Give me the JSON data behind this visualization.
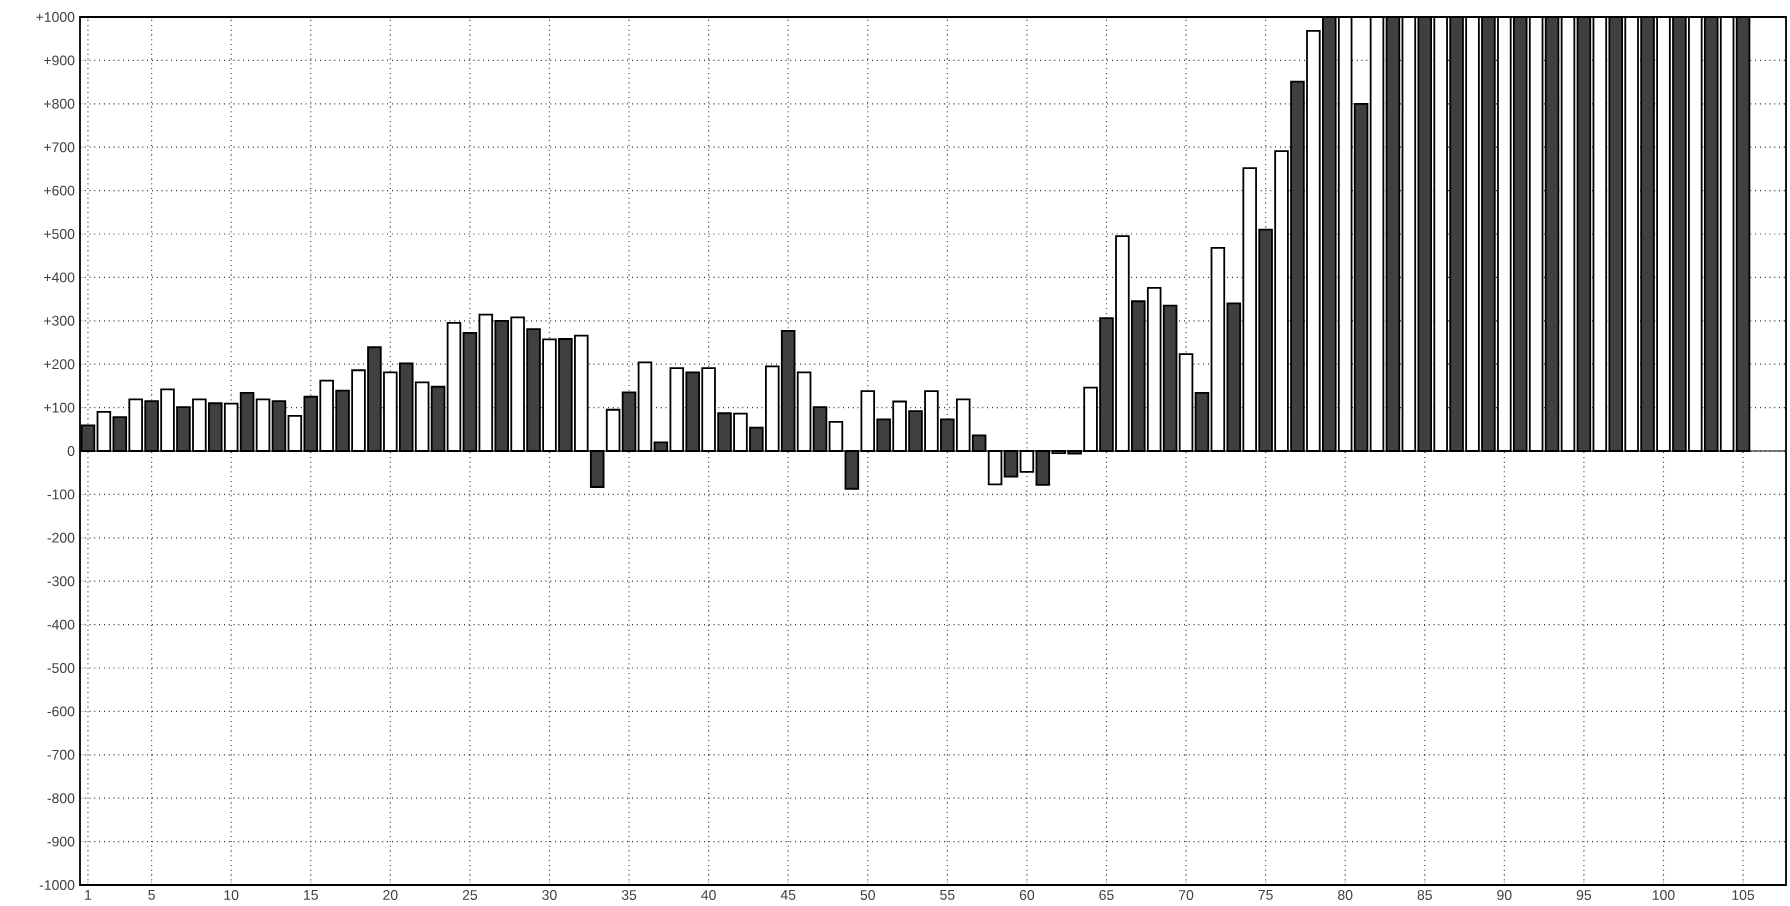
{
  "chart_data": {
    "type": "bar",
    "x": [
      1,
      2,
      3,
      4,
      5,
      6,
      7,
      8,
      9,
      10,
      11,
      12,
      13,
      14,
      15,
      16,
      17,
      18,
      19,
      20,
      21,
      22,
      23,
      24,
      25,
      26,
      27,
      28,
      29,
      30,
      31,
      32,
      33,
      34,
      35,
      36,
      37,
      38,
      39,
      40,
      41,
      42,
      43,
      44,
      45,
      46,
      47,
      48,
      49,
      50,
      51,
      52,
      53,
      54,
      55,
      56,
      57,
      58,
      59,
      60,
      61,
      62,
      63,
      64,
      65,
      66,
      67,
      68,
      69,
      70,
      71,
      72,
      73,
      74,
      75,
      76,
      77,
      78,
      79,
      80,
      81,
      82,
      83,
      84,
      85,
      86,
      87,
      88,
      89,
      90,
      91,
      92,
      93,
      94,
      95,
      96,
      97,
      98,
      99,
      100,
      101,
      102,
      103,
      104,
      105
    ],
    "values": [
      59,
      90,
      78,
      119,
      115,
      142,
      101,
      119,
      110,
      109,
      134,
      119,
      115,
      81,
      125,
      162,
      139,
      186,
      239,
      181,
      202,
      158,
      148,
      295,
      272,
      314,
      300,
      308,
      281,
      257,
      258,
      266,
      -83,
      95,
      135,
      204,
      20,
      191,
      181,
      191,
      87,
      86,
      54,
      195,
      277,
      181,
      101,
      67,
      -87,
      138,
      73,
      114,
      92,
      138,
      73,
      119,
      36,
      -77,
      -59,
      -48,
      -78,
      -5,
      -6,
      146,
      306,
      495,
      345,
      376,
      335,
      223,
      134,
      468,
      340,
      652,
      510,
      691,
      851,
      968,
      1000,
      1000,
      800,
      1000,
      1000,
      1000,
      1000,
      1000,
      1000,
      1000,
      1000,
      1000,
      1000,
      1000,
      1000,
      1000,
      1000,
      1000,
      1000,
      1000,
      1000,
      1000,
      1000,
      1000,
      1000,
      1000,
      1000
    ],
    "colors": [
      "#404040",
      "#ffffff",
      "#404040",
      "#ffffff",
      "#404040",
      "#ffffff",
      "#404040",
      "#ffffff",
      "#404040",
      "#ffffff",
      "#404040",
      "#ffffff",
      "#404040",
      "#ffffff",
      "#404040",
      "#ffffff",
      "#404040",
      "#ffffff",
      "#404040",
      "#ffffff",
      "#404040",
      "#ffffff",
      "#404040",
      "#ffffff",
      "#404040",
      "#ffffff",
      "#404040",
      "#ffffff",
      "#404040",
      "#ffffff",
      "#404040",
      "#ffffff",
      "#404040",
      "#ffffff",
      "#404040",
      "#ffffff",
      "#404040",
      "#ffffff",
      "#404040",
      "#ffffff",
      "#404040",
      "#ffffff",
      "#404040",
      "#ffffff",
      "#404040",
      "#ffffff",
      "#404040",
      "#ffffff",
      "#404040",
      "#ffffff",
      "#404040",
      "#ffffff",
      "#404040",
      "#ffffff",
      "#404040",
      "#ffffff",
      "#404040",
      "#ffffff",
      "#404040",
      "#ffffff",
      "#404040",
      "#ffffff",
      "#404040",
      "#ffffff",
      "#404040",
      "#ffffff",
      "#404040",
      "#ffffff",
      "#404040",
      "#ffffff",
      "#404040",
      "#ffffff",
      "#404040",
      "#ffffff",
      "#404040",
      "#ffffff",
      "#404040",
      "#ffffff",
      "#404040",
      "#ffffff",
      "#404040",
      "#ffffff",
      "#404040",
      "#ffffff",
      "#404040",
      "#ffffff",
      "#404040",
      "#ffffff",
      "#404040",
      "#ffffff",
      "#404040",
      "#ffffff",
      "#404040",
      "#ffffff",
      "#404040",
      "#ffffff",
      "#404040",
      "#ffffff",
      "#404040",
      "#ffffff",
      "#404040",
      "#ffffff",
      "#404040",
      "#ffffff",
      "#404040"
    ],
    "xlim": [
      0.5,
      107.7
    ],
    "ylim": [
      -1000,
      1000
    ],
    "xticks": [
      1,
      5,
      10,
      15,
      20,
      25,
      30,
      35,
      40,
      45,
      50,
      55,
      60,
      65,
      70,
      75,
      80,
      85,
      90,
      95,
      100,
      105
    ],
    "yticks": [
      {
        "value": -1000,
        "label": "-1000"
      },
      {
        "value": -900,
        "label": "-900"
      },
      {
        "value": -800,
        "label": "-800"
      },
      {
        "value": -700,
        "label": "-700"
      },
      {
        "value": -600,
        "label": "-600"
      },
      {
        "value": -500,
        "label": "-500"
      },
      {
        "value": -400,
        "label": "-400"
      },
      {
        "value": -300,
        "label": "-300"
      },
      {
        "value": -200,
        "label": "-200"
      },
      {
        "value": -100,
        "label": "-100"
      },
      {
        "value": 0,
        "label": "0"
      },
      {
        "value": 100,
        "label": "+100"
      },
      {
        "value": 200,
        "label": "+200"
      },
      {
        "value": 300,
        "label": "+300"
      },
      {
        "value": 400,
        "label": "+400"
      },
      {
        "value": 500,
        "label": "+500"
      },
      {
        "value": 600,
        "label": "+600"
      },
      {
        "value": 700,
        "label": "+700"
      },
      {
        "value": 800,
        "label": "+800"
      },
      {
        "value": 900,
        "label": "+900"
      },
      {
        "value": 1000,
        "label": "+1000"
      }
    ],
    "grid": true
  }
}
